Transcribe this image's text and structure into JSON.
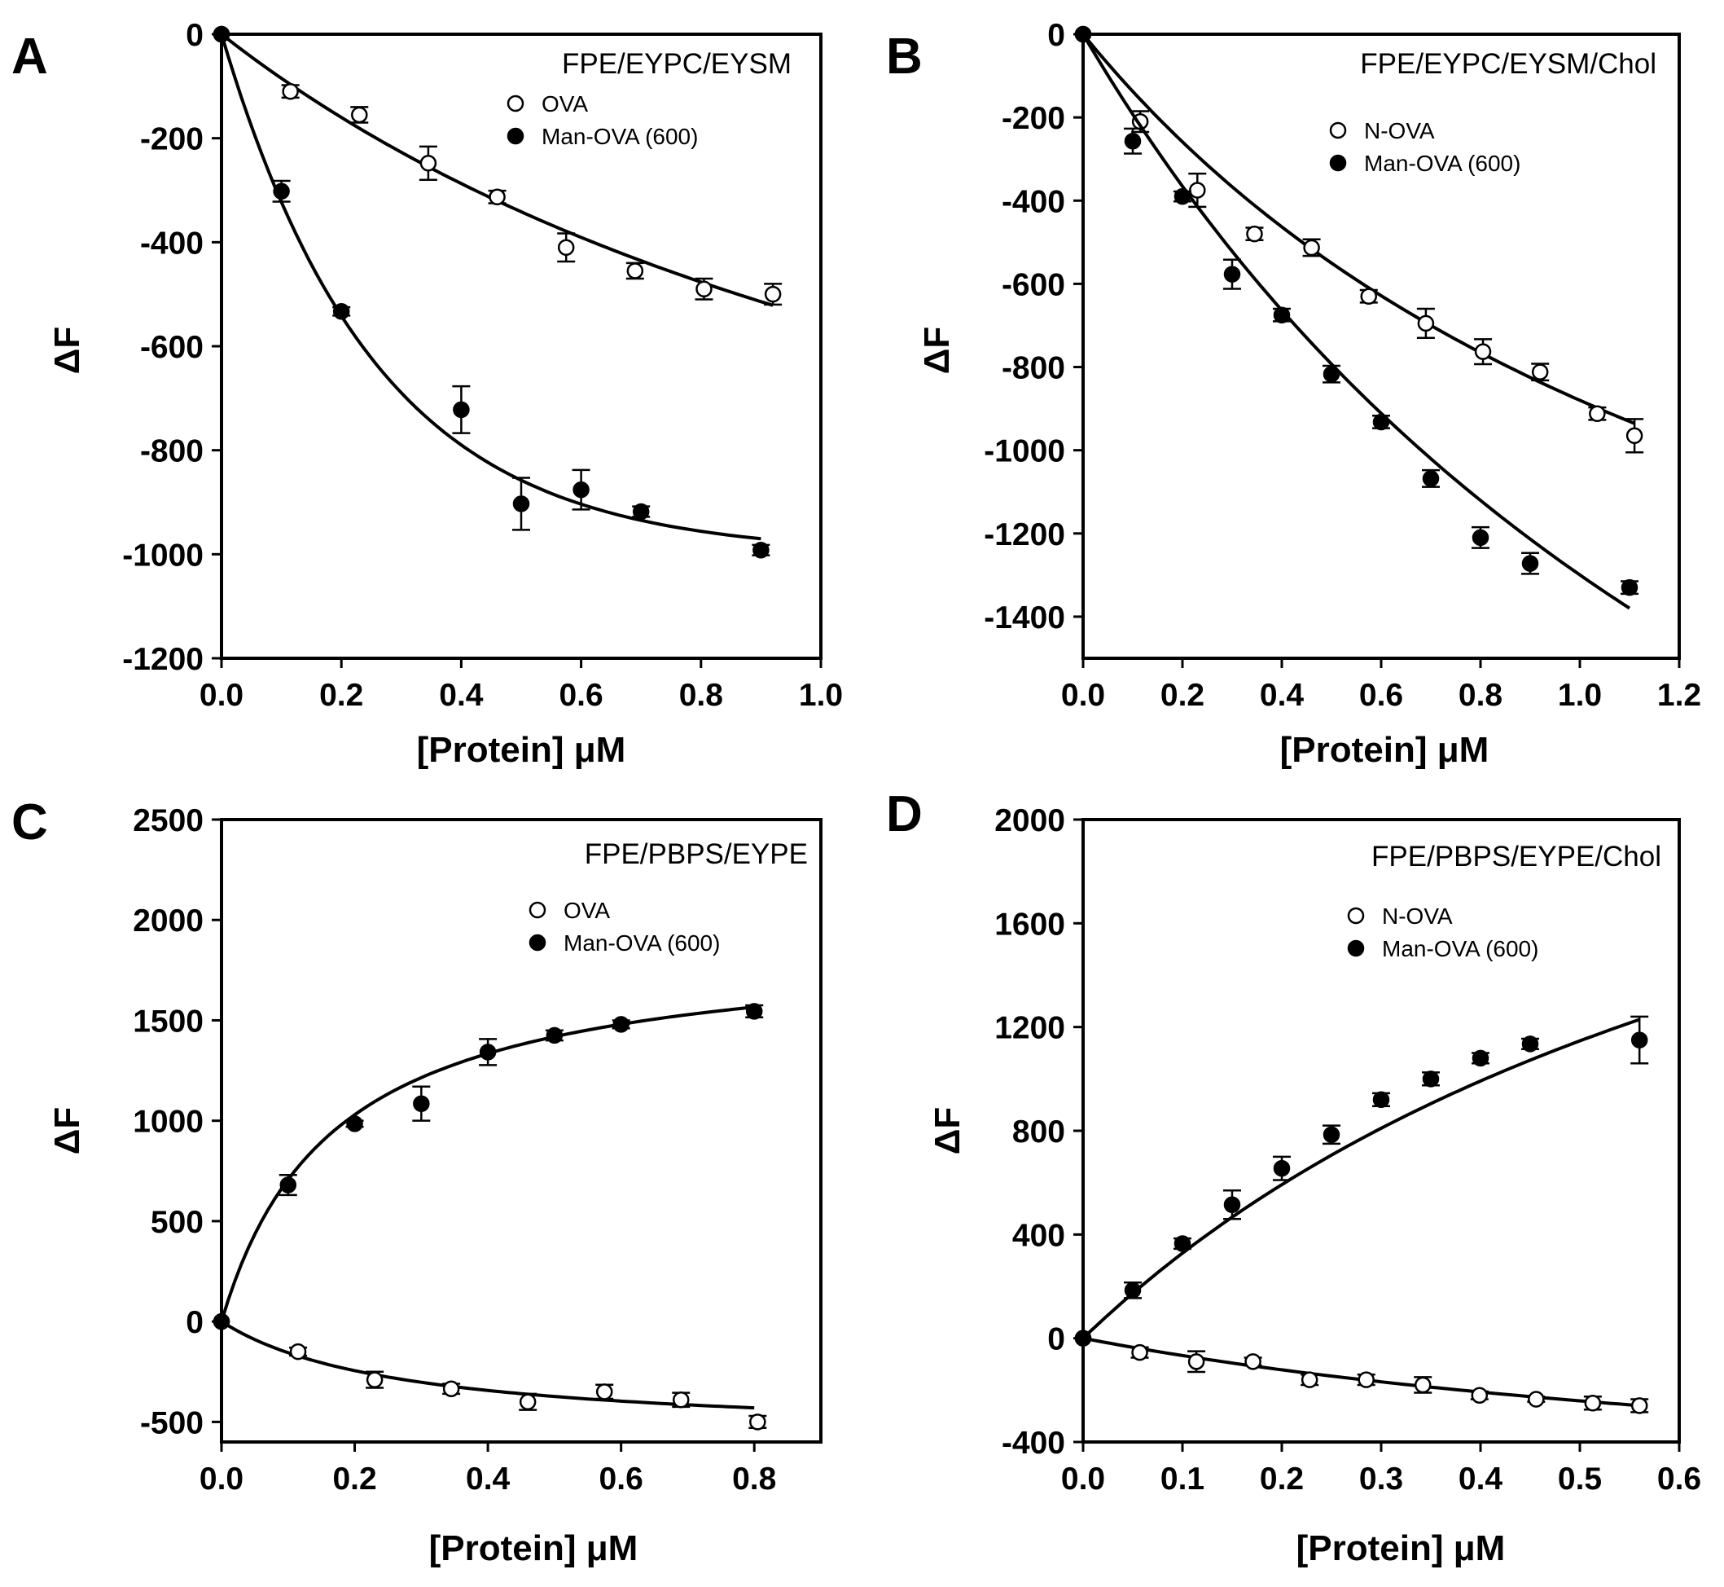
{
  "chart_data": [
    {
      "panel": "A",
      "type": "scatter",
      "title": "FPE/EYPC/EYSM",
      "xlabel": "[Protein] μM",
      "ylabel": "ΔF",
      "xlim": [
        0,
        1.0
      ],
      "ylim": [
        -1200,
        0
      ],
      "xticks": [
        "0.0",
        "0.2",
        "0.4",
        "0.6",
        "0.8",
        "1.0"
      ],
      "xtick_values": [
        0,
        0.2,
        0.4,
        0.6,
        0.8,
        1.0
      ],
      "yticks": [
        "0",
        "-200",
        "-400",
        "-600",
        "-800",
        "-1000",
        "-1200"
      ],
      "ytick_values": [
        0,
        -200,
        -400,
        -600,
        -800,
        -1000,
        -1200
      ],
      "legend_position": "top-right",
      "series": [
        {
          "name": "OVA",
          "marker": "open-circle",
          "x": [
            0,
            0.115,
            0.23,
            0.345,
            0.46,
            0.575,
            0.69,
            0.805,
            0.92
          ],
          "y": [
            0,
            -110,
            -155,
            -248,
            -313,
            -410,
            -455,
            -490,
            -500
          ],
          "err": [
            0,
            12,
            15,
            32,
            12,
            27,
            15,
            20,
            20
          ],
          "fit": {
            "model": "hyperbolic",
            "Fmax": -1400,
            "K": 1.55,
            "x_end": 0.92
          }
        },
        {
          "name": "Man-OVA (600)",
          "marker": "filled-circle",
          "x": [
            0,
            0.1,
            0.2,
            0.4,
            0.5,
            0.6,
            0.7,
            0.9
          ],
          "y": [
            0,
            -302,
            -533,
            -722,
            -903,
            -876,
            -918,
            -992
          ],
          "err": [
            0,
            20,
            8,
            45,
            50,
            38,
            10,
            10
          ],
          "fit": {
            "model": "exponential",
            "Fmax": -1000,
            "k": 3.9,
            "x_end": 0.9
          }
        }
      ]
    },
    {
      "panel": "B",
      "type": "scatter",
      "title": "FPE/EYPC/EYSM/Chol",
      "xlabel": "[Protein] μM",
      "ylabel": "ΔF",
      "xlim": [
        0,
        1.2
      ],
      "ylim": [
        -1500,
        0
      ],
      "xticks": [
        "0.0",
        "0.2",
        "0.4",
        "0.6",
        "0.8",
        "1.0",
        "1.2"
      ],
      "xtick_values": [
        0,
        0.2,
        0.4,
        0.6,
        0.8,
        1.0,
        1.2
      ],
      "yticks": [
        "0",
        "-200",
        "-400",
        "-600",
        "-800",
        "-1000",
        "-1200",
        "-1400"
      ],
      "ytick_values": [
        0,
        -200,
        -400,
        -600,
        -800,
        -1000,
        -1200,
        -1400
      ],
      "legend_position": "top-right",
      "series": [
        {
          "name": "N-OVA",
          "marker": "open-circle",
          "x": [
            0,
            0.115,
            0.23,
            0.345,
            0.46,
            0.575,
            0.69,
            0.805,
            0.92,
            1.035,
            1.11
          ],
          "y": [
            0,
            -210,
            -375,
            -480,
            -513,
            -630,
            -695,
            -763,
            -812,
            -912,
            -965
          ],
          "err": [
            0,
            25,
            40,
            15,
            20,
            15,
            35,
            30,
            20,
            15,
            40
          ],
          "fit": {
            "model": "hyperbolic",
            "Fmax": -2200,
            "K": 1.5,
            "x_end": 1.11
          }
        },
        {
          "name": "Man-OVA (600)",
          "marker": "filled-circle",
          "x": [
            0,
            0.1,
            0.2,
            0.3,
            0.4,
            0.5,
            0.6,
            0.7,
            0.8,
            0.9,
            1.1
          ],
          "y": [
            0,
            -257,
            -390,
            -577,
            -675,
            -817,
            -932,
            -1068,
            -1210,
            -1272,
            -1330
          ],
          "err": [
            0,
            30,
            12,
            35,
            15,
            20,
            15,
            20,
            25,
            25,
            15
          ],
          "fit": {
            "model": "hyperbolic",
            "Fmax": -3600,
            "K": 1.77,
            "x_end": 1.1
          }
        }
      ]
    },
    {
      "panel": "C",
      "type": "scatter",
      "title": "FPE/PBPS/EYPE",
      "xlabel": "[Protein] μM",
      "ylabel": "ΔF",
      "xlim": [
        0,
        0.9
      ],
      "ylim": [
        -600,
        2500
      ],
      "xticks": [
        "0.0",
        "0.2",
        "0.4",
        "0.6",
        "0.8"
      ],
      "xtick_values": [
        0,
        0.2,
        0.4,
        0.6,
        0.8
      ],
      "yticks": [
        "2500",
        "2000",
        "1500",
        "1000",
        "500",
        "0",
        "-500"
      ],
      "ytick_values": [
        2500,
        2000,
        1500,
        1000,
        500,
        0,
        -500
      ],
      "legend_position": "top-right",
      "series": [
        {
          "name": "OVA",
          "marker": "open-circle",
          "x": [
            0,
            0.115,
            0.23,
            0.345,
            0.46,
            0.575,
            0.69,
            0.805
          ],
          "y": [
            0,
            -150,
            -290,
            -335,
            -400,
            -350,
            -390,
            -500
          ],
          "err": [
            0,
            20,
            40,
            25,
            40,
            35,
            35,
            30
          ],
          "fit": {
            "model": "hyperbolic",
            "Fmax": -575,
            "K": 0.27,
            "x_end": 0.8
          }
        },
        {
          "name": "Man-OVA (600)",
          "marker": "filled-circle",
          "x": [
            0,
            0.1,
            0.2,
            0.3,
            0.4,
            0.5,
            0.6,
            0.8
          ],
          "y": [
            0,
            680,
            985,
            1085,
            1342,
            1425,
            1480,
            1545
          ],
          "err": [
            0,
            50,
            15,
            85,
            65,
            25,
            20,
            30
          ],
          "fit": {
            "model": "hyperbolic",
            "Fmax": 1895,
            "K": 0.168,
            "x_end": 0.8
          }
        }
      ]
    },
    {
      "panel": "D",
      "type": "scatter",
      "title": "FPE/PBPS/EYPE/Chol",
      "xlabel": "[Protein] μM",
      "ylabel": "ΔF",
      "xlim": [
        0,
        0.6
      ],
      "ylim": [
        -400,
        2000
      ],
      "xticks": [
        "0.0",
        "0.1",
        "0.2",
        "0.3",
        "0.4",
        "0.5",
        "0.6"
      ],
      "xtick_values": [
        0,
        0.1,
        0.2,
        0.3,
        0.4,
        0.5,
        0.6
      ],
      "yticks": [
        "2000",
        "1600",
        "1200",
        "800",
        "400",
        "0",
        "-400"
      ],
      "ytick_values": [
        2000,
        1600,
        1200,
        800,
        400,
        0,
        -400
      ],
      "legend_position": "top-right",
      "series": [
        {
          "name": "N-OVA",
          "marker": "open-circle",
          "x": [
            0,
            0.057,
            0.114,
            0.171,
            0.228,
            0.285,
            0.342,
            0.399,
            0.456,
            0.513,
            0.56
          ],
          "y": [
            0,
            -55,
            -90,
            -90,
            -160,
            -160,
            -180,
            -220,
            -235,
            -250,
            -260
          ],
          "err": [
            0,
            20,
            40,
            15,
            20,
            20,
            30,
            15,
            10,
            25,
            25
          ],
          "fit": {
            "model": "hyperbolic",
            "Fmax": -700,
            "K": 0.95,
            "x_end": 0.56
          }
        },
        {
          "name": "Man-OVA (600)",
          "marker": "filled-circle",
          "x": [
            0,
            0.05,
            0.1,
            0.15,
            0.2,
            0.25,
            0.3,
            0.35,
            0.4,
            0.45,
            0.56
          ],
          "y": [
            0,
            185,
            365,
            515,
            655,
            785,
            920,
            1000,
            1080,
            1135,
            1150
          ],
          "err": [
            0,
            30,
            20,
            55,
            45,
            35,
            25,
            25,
            20,
            20,
            90
          ],
          "fit": {
            "model": "hyperbolic",
            "Fmax": 3050,
            "K": 0.83,
            "x_end": 0.56
          }
        }
      ]
    }
  ]
}
